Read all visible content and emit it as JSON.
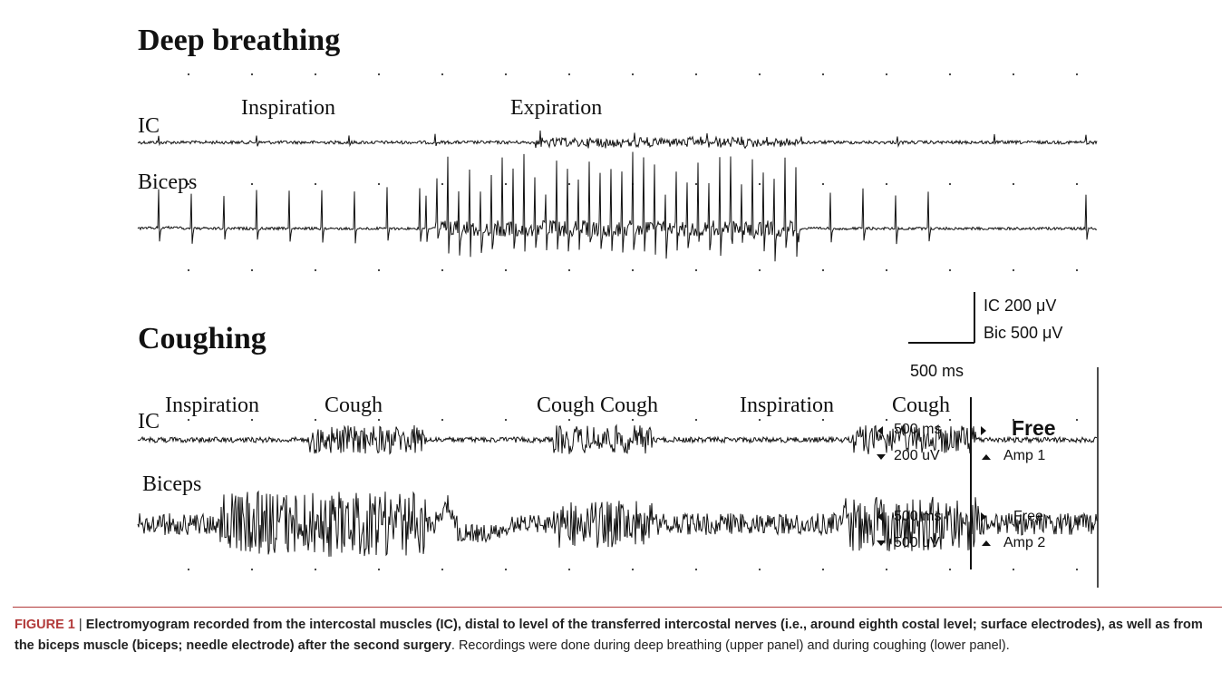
{
  "figure": {
    "panels": [
      {
        "title": "Deep breathing",
        "traces": [
          {
            "label": "IC",
            "annotations": [
              "Inspiration",
              "Expiration"
            ]
          },
          {
            "label": "Biceps",
            "annotations": []
          }
        ]
      },
      {
        "title": "Coughing",
        "traces": [
          {
            "label": "IC",
            "annotations": [
              "Inspiration",
              "Cough",
              "Cough Cough",
              "Inspiration",
              "Cough"
            ]
          },
          {
            "label": "Biceps",
            "annotations": []
          }
        ]
      }
    ],
    "scale_bar": {
      "amplitude_ic": "IC 200 μV",
      "amplitude_bic": "Bic 500 μV",
      "time": "500 ms"
    },
    "recorder_overlay": {
      "channel_1": {
        "time": "500 ms",
        "free": "Free",
        "amp": "200 uV",
        "channel": "Amp 1"
      },
      "channel_2": {
        "time": "500 ms",
        "free": "Free",
        "amp": "500 uV",
        "channel": "Amp 2"
      }
    }
  },
  "caption": {
    "label": "FIGURE 1",
    "separator": " | ",
    "bold_text": "Electromyogram recorded from the intercostal muscles (IC), distal to level of the transferred intercostal nerves (i.e., around eighth costal level; surface electrodes), as well as from the biceps muscle (biceps; needle electrode) after the second surgery",
    "text": ". Recordings were done during deep breathing (upper panel) and during coughing (lower panel)."
  },
  "colors": {
    "trace": "#111111",
    "caption_label": "#b23a3a",
    "rule": "#b23a3a"
  }
}
